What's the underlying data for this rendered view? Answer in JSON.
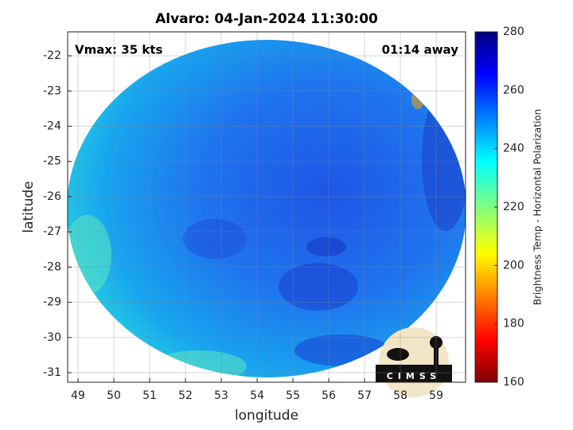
{
  "chart_data": {
    "type": "map",
    "title": "Alvaro: 04-Jan-2024 11:30:00",
    "xlabel": "longitude",
    "ylabel": "latitude",
    "xlim": [
      48.71,
      59.82
    ],
    "ylim": [
      -31.27,
      -21.32
    ],
    "xticks": [
      49,
      50,
      51,
      52,
      53,
      54,
      55,
      56,
      57,
      58,
      59
    ],
    "yticks": [
      -22,
      -23,
      -24,
      -25,
      -26,
      -27,
      -28,
      -29,
      -30,
      -31
    ],
    "grid": true,
    "colorbar": {
      "label": "Brightness Temp - Horizontal Polarization",
      "lim": [
        160,
        280
      ],
      "ticks": [
        160,
        180,
        200,
        220,
        240,
        260,
        280
      ]
    },
    "annotations": [
      "Vmax: 35 kts",
      "01:14 away"
    ],
    "logo": "CIMSS"
  }
}
